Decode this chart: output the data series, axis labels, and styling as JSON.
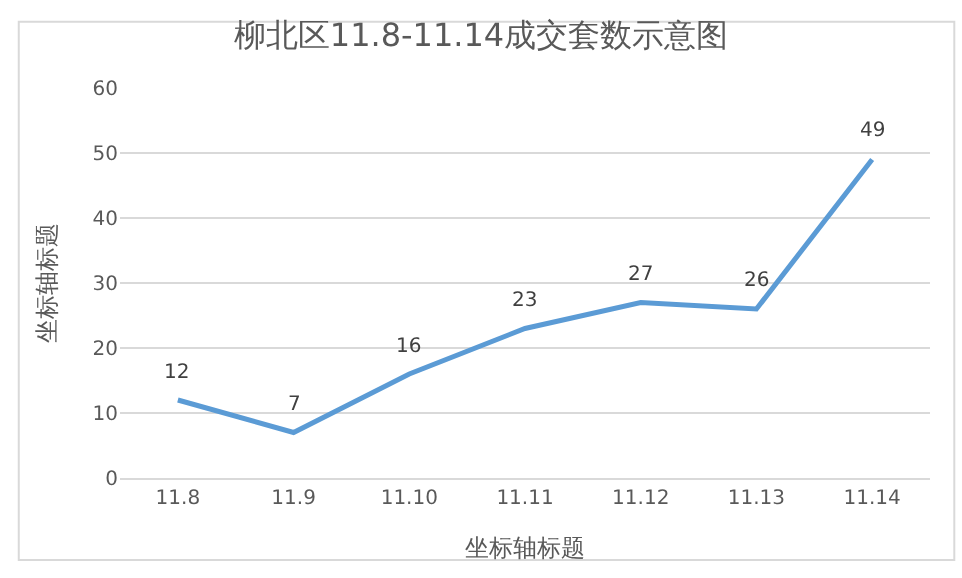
{
  "chart_data": {
    "type": "line",
    "title": "柳北区11.8-11.14成交套数示意图",
    "xlabel": "坐标轴标题",
    "ylabel": "坐标轴标题",
    "categories": [
      "11.8",
      "11.9",
      "11.10",
      "11.11",
      "11.12",
      "11.13",
      "11.14"
    ],
    "series": [
      {
        "color": "#5b9bd5",
        "values": [
          12,
          7,
          16,
          23,
          27,
          26,
          49
        ]
      }
    ],
    "ylim": [
      0,
      60
    ],
    "yticks": [
      0,
      10,
      20,
      30,
      40,
      50,
      60
    ],
    "grid": "y",
    "data_labels": true,
    "legend": false,
    "marker": "none",
    "line_style": "solid"
  }
}
